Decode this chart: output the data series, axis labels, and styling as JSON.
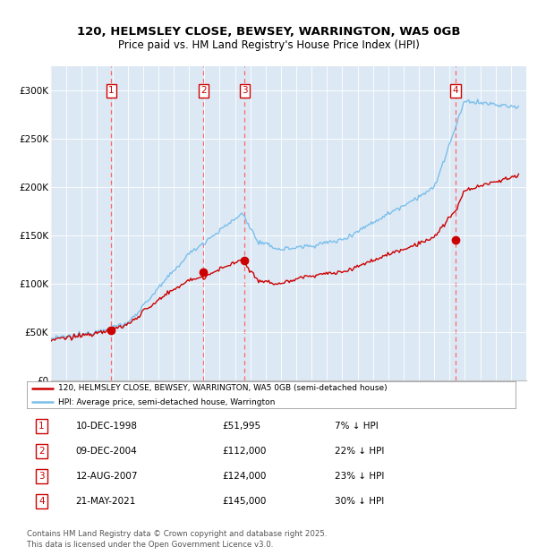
{
  "title_line1": "120, HELMSLEY CLOSE, BEWSEY, WARRINGTON, WA5 0GB",
  "title_line2": "Price paid vs. HM Land Registry's House Price Index (HPI)",
  "background_color": "#dce9f5",
  "plot_bg_color": "#dce9f5",
  "hpi_color": "#7bbfea",
  "paid_color": "#cc0000",
  "vline_color": "#ff6666",
  "transactions": [
    {
      "date_num": 1998.94,
      "price": 51995,
      "label": "1"
    },
    {
      "date_num": 2004.94,
      "price": 112000,
      "label": "2"
    },
    {
      "date_num": 2007.62,
      "price": 124000,
      "label": "3"
    },
    {
      "date_num": 2021.39,
      "price": 145000,
      "label": "4"
    }
  ],
  "table_rows": [
    {
      "num": "1",
      "date": "10-DEC-1998",
      "price": "£51,995",
      "hpi": "7% ↓ HPI"
    },
    {
      "num": "2",
      "date": "09-DEC-2004",
      "price": "£112,000",
      "hpi": "22% ↓ HPI"
    },
    {
      "num": "3",
      "date": "12-AUG-2007",
      "price": "£124,000",
      "hpi": "23% ↓ HPI"
    },
    {
      "num": "4",
      "date": "21-MAY-2021",
      "price": "£145,000",
      "hpi": "30% ↓ HPI"
    }
  ],
  "legend_paid": "120, HELMSLEY CLOSE, BEWSEY, WARRINGTON, WA5 0GB (semi-detached house)",
  "legend_hpi": "HPI: Average price, semi-detached house, Warrington",
  "footer": "Contains HM Land Registry data © Crown copyright and database right 2025.\nThis data is licensed under the Open Government Licence v3.0.",
  "ylim": [
    0,
    325000
  ],
  "yticks": [
    0,
    50000,
    100000,
    150000,
    200000,
    250000,
    300000
  ],
  "ytick_labels": [
    "£0",
    "£50K",
    "£100K",
    "£150K",
    "£200K",
    "£250K",
    "£300K"
  ],
  "xstart": 1995,
  "xend": 2026
}
